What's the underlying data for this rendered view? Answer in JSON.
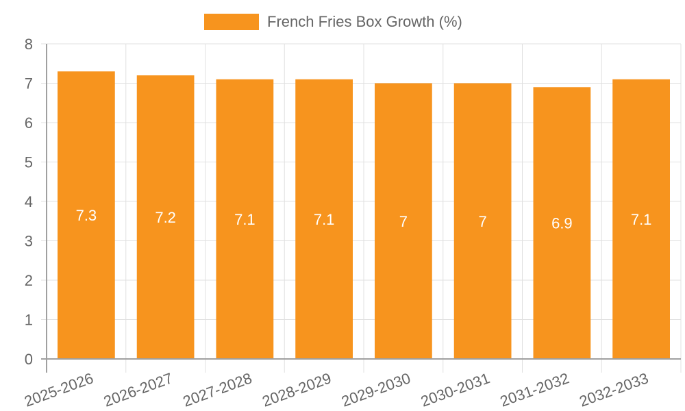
{
  "chart_data": {
    "type": "bar",
    "title": "",
    "legend": {
      "position": "top",
      "entries": [
        {
          "label": "French Fries Box Growth (%)",
          "color": "#f7941e"
        }
      ]
    },
    "categories": [
      "2025-2026",
      "2026-2027",
      "2027-2028",
      "2028-2029",
      "2029-2030",
      "2030-2031",
      "2031-2032",
      "2032-2033"
    ],
    "series": [
      {
        "name": "French Fries Box Growth (%)",
        "values": [
          7.3,
          7.2,
          7.1,
          7.1,
          7,
          7,
          6.9,
          7.1
        ],
        "color": "#f7941e"
      }
    ],
    "data_labels": [
      "7.3",
      "7.2",
      "7.1",
      "7.1",
      "7",
      "7",
      "6.9",
      "7.1"
    ],
    "xlabel": "",
    "ylabel": "",
    "ylim": [
      0,
      8
    ],
    "yticks": [
      "0",
      "1",
      "2",
      "3",
      "4",
      "5",
      "6",
      "7",
      "8"
    ],
    "grid": true,
    "x_tick_rotation": -20
  },
  "legend": {
    "label": "French Fries Box Growth (%)"
  }
}
